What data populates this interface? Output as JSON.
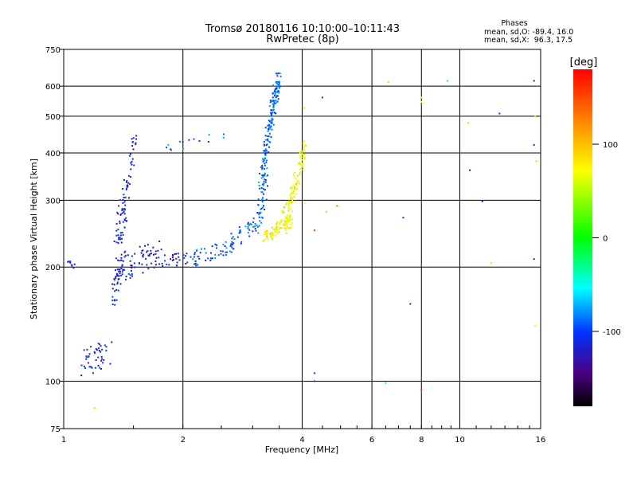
{
  "chart_data": {
    "type": "scatter",
    "title": "Tromsø 20180116 10:10:00–10:11:43",
    "subtitle": "RwPretec (8p)",
    "stats": {
      "heading": "Phases",
      "line_o": "mean, sd,O: -89.4, 16.0",
      "line_x": "mean, sd,X:  96.3, 17.5"
    },
    "xlabel": "Frequency [MHz]",
    "ylabel": "Stationary phase Virtual Height [km]",
    "xscale": "log",
    "yscale": "log",
    "xlim": [
      1,
      16
    ],
    "ylim": [
      75,
      750
    ],
    "x_ticks": [
      1,
      2,
      4,
      6,
      8,
      10,
      16
    ],
    "y_ticks": [
      75,
      100,
      200,
      300,
      400,
      500,
      600,
      750
    ],
    "grid": true,
    "colorbar": {
      "label": "[deg]",
      "range": [
        -180,
        180
      ],
      "ticks": [
        100,
        0,
        -100
      ]
    },
    "series": [
      {
        "phase_deg": -115,
        "tracks": [
          {
            "from": [
              1.02,
              205
            ],
            "to": [
              1.07,
              200
            ],
            "n": 8,
            "jitter": 4
          },
          {
            "from": [
              1.1,
              110
            ],
            "to": [
              1.33,
              122
            ],
            "n": 45,
            "jitter": 10
          },
          {
            "from": [
              1.33,
              160
            ],
            "to": [
              1.42,
              215
            ],
            "n": 40,
            "jitter": 14
          },
          {
            "from": [
              1.35,
              195
            ],
            "to": [
              1.43,
              290
            ],
            "n": 60,
            "jitter": 45
          },
          {
            "from": [
              1.42,
              280
            ],
            "to": [
              1.52,
              440
            ],
            "n": 40,
            "jitter": 25
          },
          {
            "from": [
              1.45,
              200
            ],
            "to": [
              1.75,
              220
            ],
            "n": 55,
            "jitter": 18
          },
          {
            "from": [
              1.75,
              208
            ],
            "to": [
              2.2,
              212
            ],
            "n": 35,
            "jitter": 8
          }
        ]
      },
      {
        "phase_deg": -90,
        "tracks": [
          {
            "from": [
              2.1,
              210
            ],
            "to": [
              2.7,
              228
            ],
            "n": 45,
            "jitter": 10
          },
          {
            "from": [
              2.6,
              230
            ],
            "to": [
              3.1,
              260
            ],
            "n": 35,
            "jitter": 12
          },
          {
            "from": [
              3.05,
              255
            ],
            "to": [
              3.3,
              330
            ],
            "n": 35,
            "jitter": 25
          },
          {
            "from": [
              3.15,
              320
            ],
            "to": [
              3.5,
              640
            ],
            "n": 180,
            "jitter": 30
          },
          {
            "from": [
              1.8,
              405
            ],
            "to": [
              2.6,
              450
            ],
            "n": 14,
            "jitter": 12
          }
        ]
      },
      {
        "phase_deg": 95,
        "tracks": [
          {
            "from": [
              3.2,
              238
            ],
            "to": [
              3.75,
              265
            ],
            "n": 90,
            "jitter": 10
          },
          {
            "from": [
              3.6,
              260
            ],
            "to": [
              4.05,
              390
            ],
            "n": 90,
            "jitter": 20
          },
          {
            "from": [
              3.95,
              380
            ],
            "to": [
              4.05,
              430
            ],
            "n": 12,
            "jitter": 10
          }
        ]
      }
    ],
    "sparse_points": [
      [
        4.3,
        105,
        -110
      ],
      [
        4.3,
        100,
        -120
      ],
      [
        6.5,
        99,
        -40
      ],
      [
        7.2,
        270,
        -110
      ],
      [
        7.5,
        160,
        -110
      ],
      [
        8.0,
        95,
        160
      ],
      [
        8.0,
        545,
        100
      ],
      [
        8.0,
        560,
        100
      ],
      [
        6.6,
        615,
        110
      ],
      [
        9.3,
        620,
        -20
      ],
      [
        10.6,
        360,
        -110
      ],
      [
        11.4,
        298,
        -110
      ],
      [
        12.6,
        508,
        -110
      ],
      [
        15.4,
        620,
        -120
      ],
      [
        15.4,
        420,
        -110
      ],
      [
        15.5,
        500,
        110
      ],
      [
        15.6,
        380,
        110
      ],
      [
        15.4,
        210,
        -120
      ],
      [
        15.5,
        140,
        100
      ],
      [
        4.5,
        560,
        -110
      ],
      [
        4.3,
        250,
        160
      ],
      [
        4.6,
        280,
        60
      ],
      [
        4.9,
        290,
        130
      ],
      [
        12.0,
        205,
        110
      ],
      [
        10.5,
        480,
        110
      ],
      [
        1.2,
        85,
        110
      ],
      [
        4.05,
        525,
        110
      ],
      [
        4.07,
        295,
        100
      ]
    ]
  }
}
